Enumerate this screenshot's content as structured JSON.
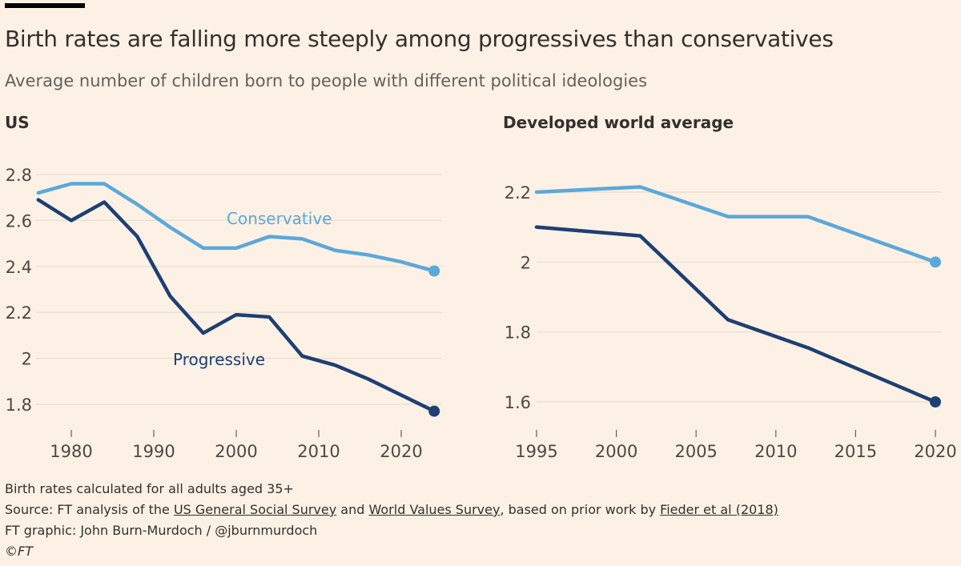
{
  "header": {
    "title": "Birth rates are falling more steeply among progressives than conservatives",
    "subtitle": "Average number of children born to people with different political ideologies"
  },
  "colors": {
    "background": "#fdf1e5",
    "conservative": "#5ba8da",
    "progressive": "#1e3f73",
    "grid": "#e8ddd1"
  },
  "chart_data": [
    {
      "type": "line",
      "title": "US",
      "x": [
        1976,
        1980,
        1984,
        1988,
        1992,
        1996,
        2000,
        2004,
        2008,
        2012,
        2016,
        2020,
        2024
      ],
      "series": [
        {
          "name": "Conservative",
          "color": "#5ba8da",
          "values": [
            2.72,
            2.76,
            2.76,
            2.67,
            2.57,
            2.48,
            2.48,
            2.53,
            2.52,
            2.47,
            2.45,
            2.42,
            2.38
          ]
        },
        {
          "name": "Progressive",
          "color": "#1e3f73",
          "values": [
            2.69,
            2.6,
            2.68,
            2.53,
            2.27,
            2.11,
            2.19,
            2.18,
            2.01,
            1.97,
            1.91,
            1.84,
            1.77
          ]
        }
      ],
      "xticks": [
        1980,
        1990,
        2000,
        2010,
        2020
      ],
      "yticks": [
        1.8,
        2,
        2.2,
        2.4,
        2.6,
        2.8
      ],
      "ytick_labels": [
        "1.8",
        "2",
        "2.2",
        "2.4",
        "2.6",
        "2.8"
      ],
      "xlim": [
        1975,
        2025
      ],
      "ylim": [
        1.7,
        2.85
      ],
      "grid": true,
      "series_labels": "inline"
    },
    {
      "type": "line",
      "title": "Developed world average",
      "x": [
        1995,
        2001.5,
        2007,
        2012,
        2020
      ],
      "series": [
        {
          "name": "Conservative",
          "color": "#5ba8da",
          "values": [
            2.2,
            2.215,
            2.13,
            2.13,
            2.0
          ]
        },
        {
          "name": "Progressive",
          "color": "#1e3f73",
          "values": [
            2.1,
            2.075,
            1.835,
            1.755,
            1.6
          ]
        }
      ],
      "xticks": [
        1995,
        2000,
        2005,
        2010,
        2015,
        2020
      ],
      "yticks": [
        1.6,
        1.8,
        2,
        2.2
      ],
      "ytick_labels": [
        "1.6",
        "1.8",
        "2",
        "2.2"
      ],
      "xlim": [
        1995,
        2020
      ],
      "ylim": [
        1.53,
        2.27
      ],
      "grid": true
    }
  ],
  "footer": {
    "note": "Birth rates calculated for all adults aged 35+",
    "source_prefix": "Source: FT analysis of the ",
    "source_link1": "US General Social Survey",
    "source_and": " and ",
    "source_link2": "World Values Survey",
    "source_mid": ", based on prior work by ",
    "source_link3": "Fieder et al (2018)",
    "credit": "FT graphic: John Burn-Murdoch / @jburnmurdoch",
    "copyright": "©FT"
  }
}
